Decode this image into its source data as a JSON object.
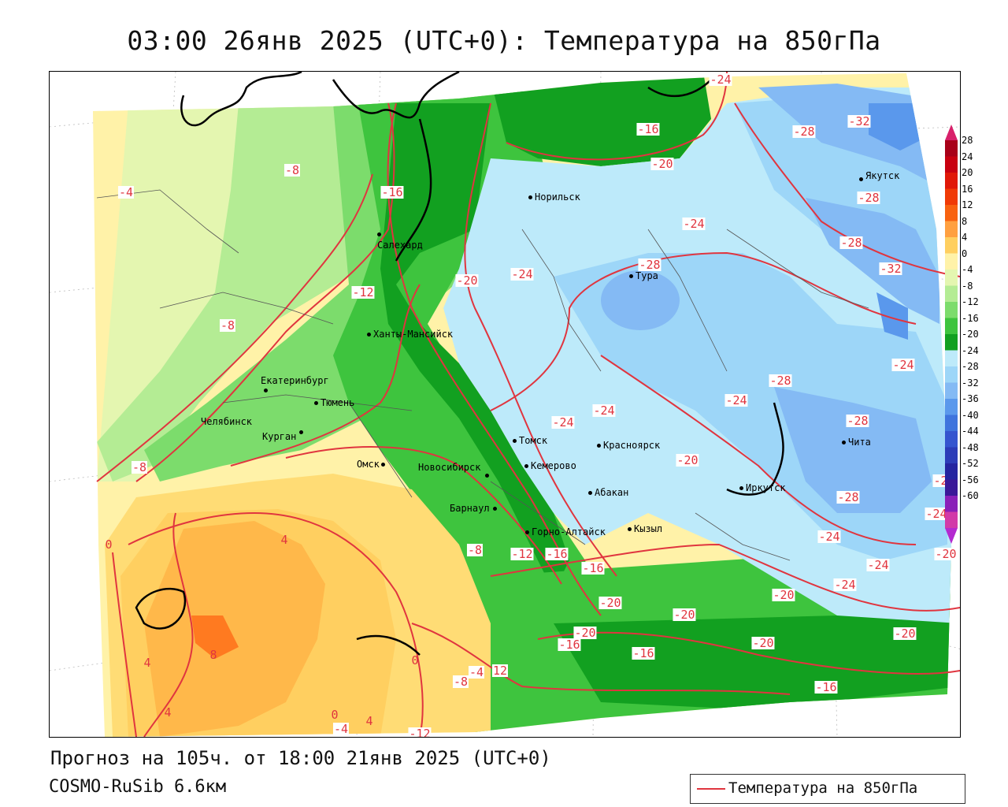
{
  "title": "03:00 26янв 2025 (UTC+0): Температура на 850гПа",
  "footer": {
    "forecast": "Прогноз на 105ч. от 18:00 21янв 2025 (UTC+0)",
    "model": "COSMO-RuSib 6.6км"
  },
  "legend": {
    "label": "Температура на 850гПа",
    "line_color": "#e0353f"
  },
  "colorbar": {
    "labels": [
      "28",
      "24",
      "20",
      "16",
      "12",
      "8",
      "4",
      "0",
      "-4",
      "-8",
      "-12",
      "-16",
      "-20",
      "-24",
      "-28",
      "-32",
      "-36",
      "-40",
      "-44",
      "-48",
      "-52",
      "-56",
      "-60"
    ],
    "colors": [
      "#a80018",
      "#c80010",
      "#e01808",
      "#f03a06",
      "#f86210",
      "#ffa040",
      "#ffcf60",
      "#fff2a8",
      "#e4f6b0",
      "#b4ec94",
      "#7cdc6c",
      "#3ec43e",
      "#12a020",
      "#bdeafa",
      "#9dd6f8",
      "#84baf4",
      "#5a98ec",
      "#3f74dd",
      "#3555cf",
      "#2c3cb8",
      "#2424a0",
      "#3a1898",
      "#8a20b8",
      "#d23aa8"
    ]
  },
  "cities": [
    {
      "name": "Норильск"
    },
    {
      "name": "Салехард"
    },
    {
      "name": "Ханты-Мансийск"
    },
    {
      "name": "Екатеринбург"
    },
    {
      "name": "Тюмень"
    },
    {
      "name": "Челябинск"
    },
    {
      "name": "Курган"
    },
    {
      "name": "Омск"
    },
    {
      "name": "Новосибирск"
    },
    {
      "name": "Томск"
    },
    {
      "name": "Кемерово"
    },
    {
      "name": "Барнаул"
    },
    {
      "name": "Красноярск"
    },
    {
      "name": "Абакан"
    },
    {
      "name": "Горно-Алтайск"
    },
    {
      "name": "Кызыл"
    },
    {
      "name": "Иркутск"
    },
    {
      "name": "Чита"
    },
    {
      "name": "Якутск"
    },
    {
      "name": "Тура"
    }
  ],
  "isotherm_labels": [
    "-24",
    "-32",
    "-16",
    "-28",
    "-20",
    "-8",
    "-4",
    "-16",
    "-28",
    "-24",
    "-28",
    "-24",
    "-20",
    "-28",
    "-12",
    "-32",
    "-8",
    "-24",
    "-24",
    "-28",
    "-24",
    "-24",
    "-28",
    "-8",
    "-20",
    "-28",
    "-20",
    "-24",
    "-24",
    "-12",
    "-16",
    "-16",
    "-8",
    "0",
    "4",
    "-20",
    "-20",
    "-20",
    "-20",
    "-16",
    "-16",
    "-20",
    "-20",
    "8",
    "4",
    "4",
    "0",
    "0",
    "-4",
    "12",
    "-8",
    "-4",
    "4",
    "-12",
    "-16",
    "-20",
    "-24",
    "-24"
  ]
}
